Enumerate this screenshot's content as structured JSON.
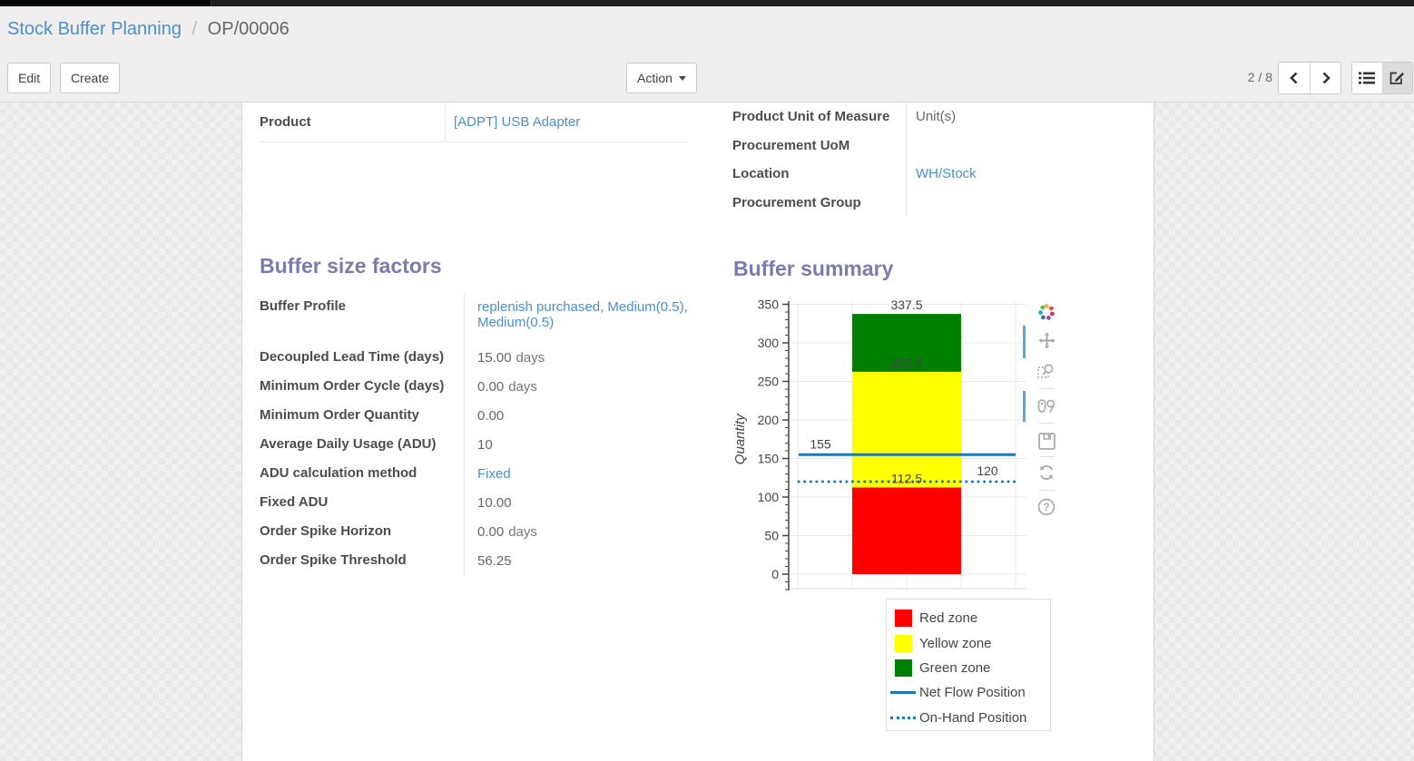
{
  "breadcrumb": {
    "parent": "Stock Buffer Planning",
    "separator": "/",
    "current": "OP/00006"
  },
  "toolbar": {
    "edit_label": "Edit",
    "create_label": "Create",
    "action_label": "Action"
  },
  "pager": {
    "value": "2 / 8"
  },
  "colors": {
    "link": "#4c8fce",
    "heading": "#7c7bad",
    "modebar_active": "#55a8e0"
  },
  "form": {
    "product": {
      "label": "Product",
      "value": "[ADPT] USB Adapter"
    },
    "right_fields": [
      {
        "label": "Product Unit of Measure",
        "value": "Unit(s)"
      },
      {
        "label": "Procurement UoM",
        "value": ""
      },
      {
        "label": "Location",
        "value": "WH/Stock"
      },
      {
        "label": "Procurement Group",
        "value": ""
      }
    ],
    "buffer_size_factors": {
      "title": "Buffer size factors",
      "fields": [
        {
          "label": "Buffer Profile",
          "value": "replenish purchased, Medium(0.5), Medium(0.5)"
        },
        {
          "label": "Decoupled Lead Time (days)",
          "value": "15.00",
          "suffix": "days"
        },
        {
          "label": "Minimum Order Cycle (days)",
          "value": "0.00",
          "suffix": "days"
        },
        {
          "label": "Minimum Order Quantity",
          "value": "0.00"
        },
        {
          "label": "Average Daily Usage (ADU)",
          "value": "10"
        },
        {
          "label": "ADU calculation method",
          "value": "Fixed"
        },
        {
          "label": "Fixed ADU",
          "value": "10.00"
        },
        {
          "label": "Order Spike Horizon",
          "value": "0.00",
          "suffix": "days"
        },
        {
          "label": "Order Spike Threshold",
          "value": "56.25"
        }
      ]
    },
    "buffer_summary": {
      "title": "Buffer summary"
    }
  },
  "chart_data": {
    "type": "bar",
    "title": "",
    "xlabel": "",
    "ylabel": "Quantity",
    "ylim": [
      0,
      350
    ],
    "ytick_step": 50,
    "yticks": [
      0,
      50,
      100,
      150,
      200,
      250,
      300,
      350
    ],
    "grid": true,
    "zones": [
      {
        "name": "Red zone",
        "from": 0,
        "to": 112.5,
        "color": "#ff0000",
        "label": "112.5"
      },
      {
        "name": "Yellow zone",
        "from": 112.5,
        "to": 262.5,
        "color": "#ffff00",
        "label": "262.5"
      },
      {
        "name": "Green zone",
        "from": 262.5,
        "to": 337.5,
        "color": "#008000",
        "label": "337.5"
      }
    ],
    "lines": [
      {
        "name": "Net Flow Position",
        "value": 155,
        "style": "solid",
        "color": "#1f77b4",
        "label": "155"
      },
      {
        "name": "On-Hand Position",
        "value": 120,
        "style": "dotted",
        "color": "#1f77b4",
        "label": "120"
      }
    ],
    "legend": [
      "Red zone",
      "Yellow zone",
      "Green zone",
      "Net Flow Position",
      "On-Hand Position"
    ],
    "legend_position": "below"
  }
}
